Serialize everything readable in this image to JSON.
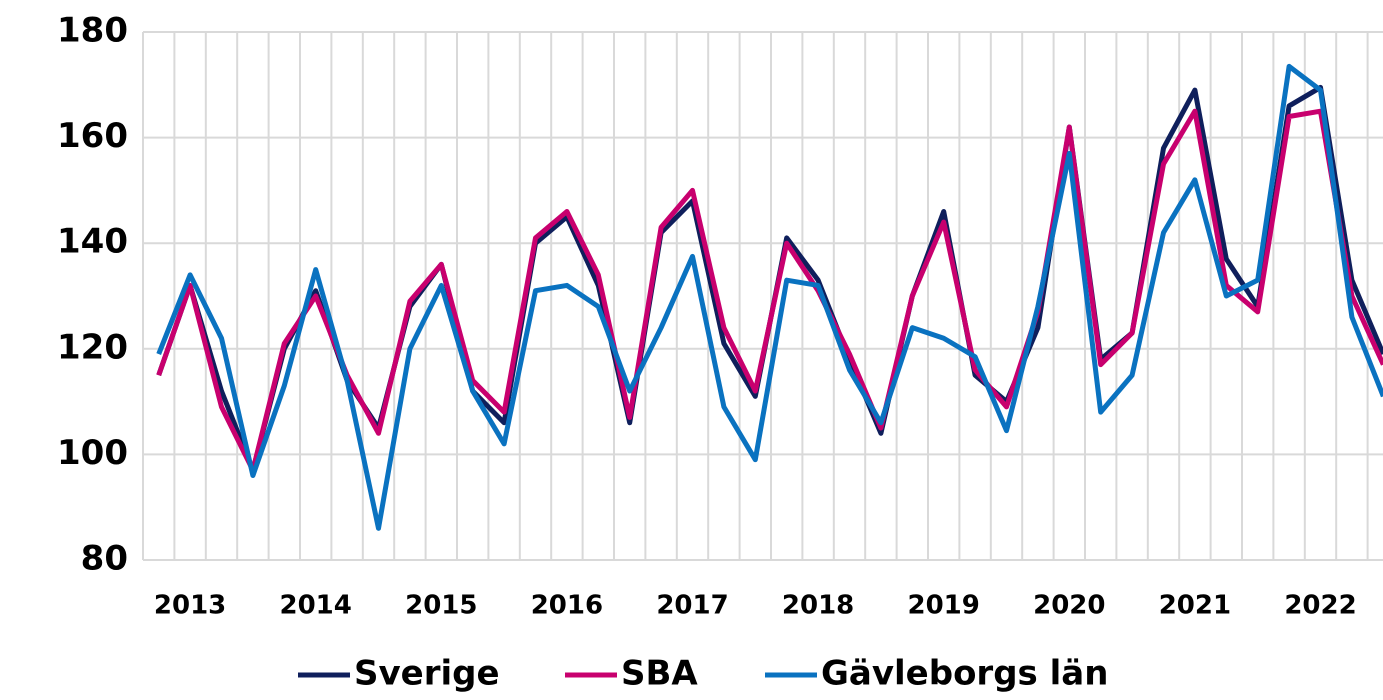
{
  "chart_data": {
    "type": "line",
    "categories": [
      null,
      "2013",
      null,
      null,
      null,
      "2014",
      null,
      null,
      null,
      "2015",
      null,
      null,
      null,
      "2016",
      null,
      null,
      null,
      "2017",
      null,
      null,
      null,
      "2018",
      null,
      null,
      null,
      "2019",
      null,
      null,
      null,
      "2020",
      null,
      null,
      null,
      "2021",
      null,
      null,
      null,
      "2022",
      null,
      null
    ],
    "series": [
      {
        "name": "Sverige",
        "color": "#0f1f5c",
        "values": [
          115,
          132,
          112,
          97,
          120,
          131,
          114,
          105,
          128,
          136,
          112,
          106,
          140,
          145,
          132,
          106,
          142,
          148,
          121,
          111,
          141,
          133,
          118,
          104,
          130,
          146,
          115,
          110,
          124,
          162,
          118,
          123,
          158,
          169,
          137,
          128,
          166,
          169.5,
          133,
          119
        ]
      },
      {
        "name": "SBA",
        "color": "#c8006e",
        "values": [
          115,
          132,
          109,
          97,
          121,
          130,
          115,
          104,
          129,
          136,
          114,
          108,
          141,
          146,
          134,
          107,
          143,
          150,
          124,
          112,
          140,
          131,
          119,
          105,
          130,
          144,
          116,
          109,
          127,
          162,
          117,
          123,
          155,
          165,
          132,
          127,
          164,
          165,
          130,
          117
        ]
      },
      {
        "name": "Gävleborgs län",
        "color": "#0a72c0",
        "values": [
          119,
          134,
          122,
          96,
          113,
          135,
          114,
          86,
          120,
          132,
          112,
          102,
          131,
          132,
          128,
          112,
          124,
          137.5,
          109,
          99,
          133,
          132,
          116,
          106,
          124,
          122,
          118.5,
          104.5,
          128,
          157,
          108,
          115,
          142,
          152,
          130,
          133,
          173.5,
          169,
          126,
          111
        ]
      }
    ],
    "ylim": [
      80,
      180
    ],
    "yticks": [
      80,
      100,
      120,
      140,
      160,
      180
    ],
    "grid": true,
    "legend": "bottom"
  }
}
